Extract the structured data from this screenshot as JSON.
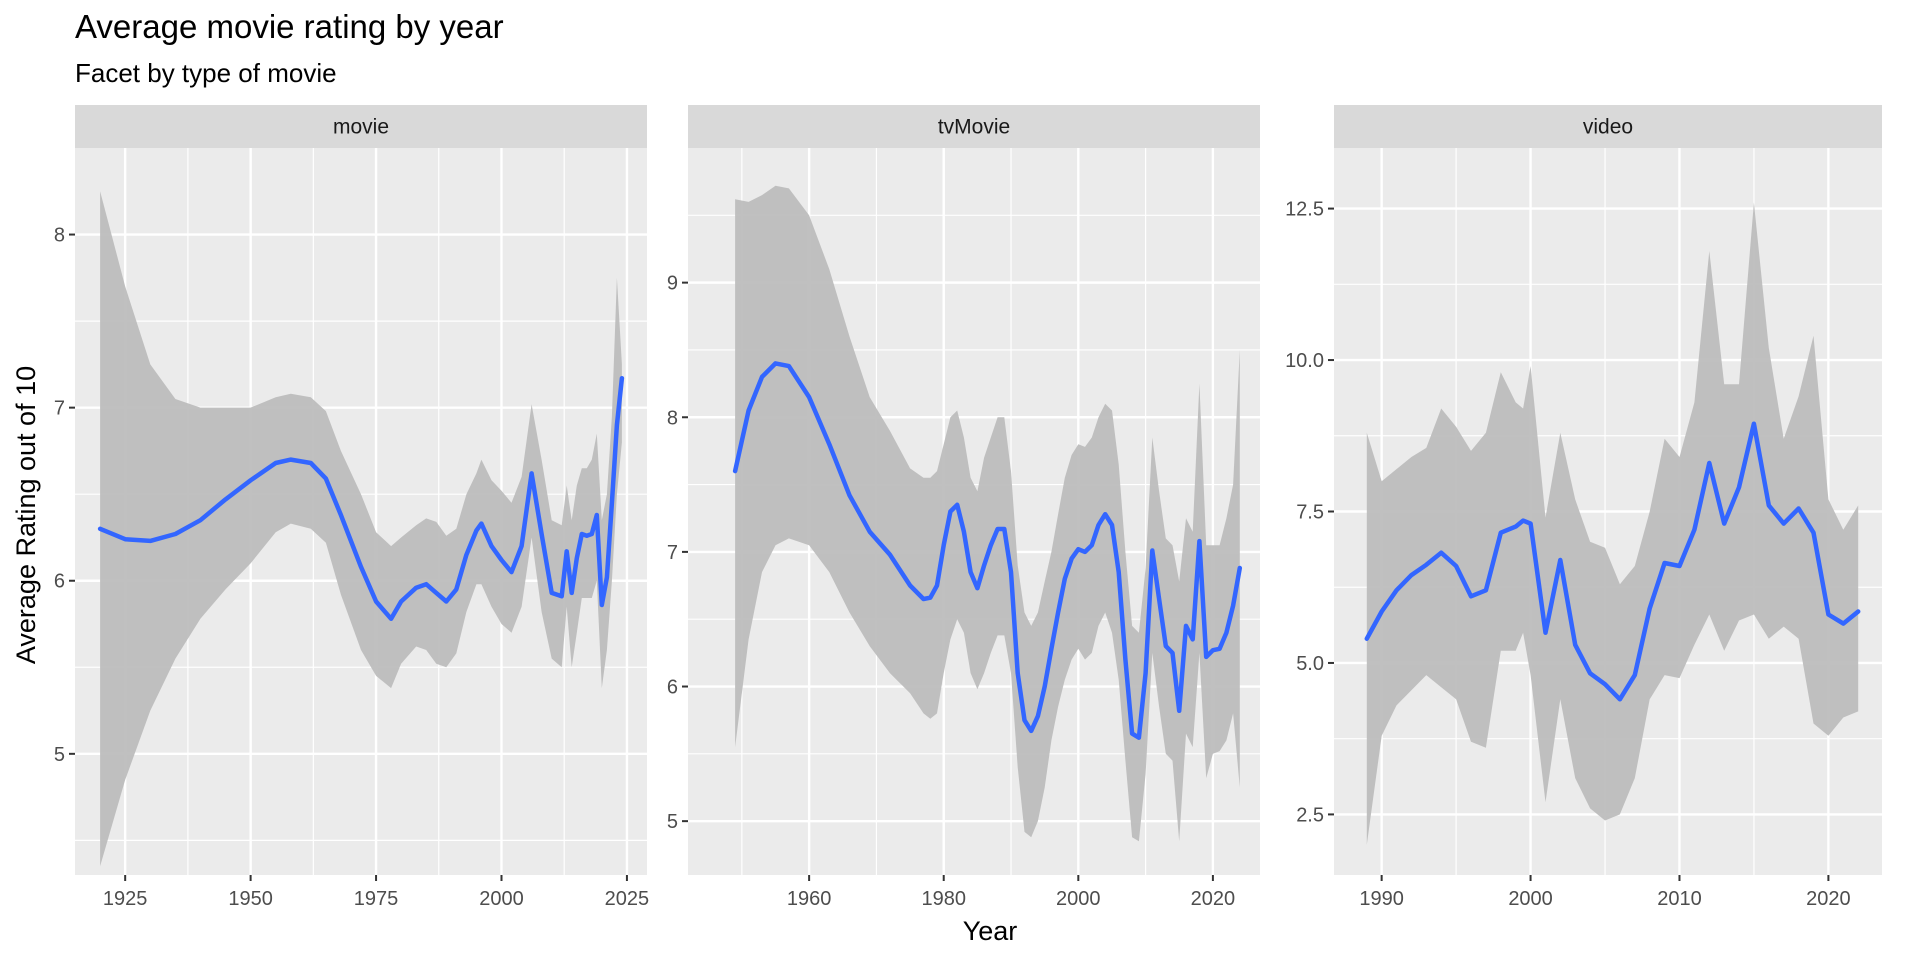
{
  "chart_data": {
    "type": "line",
    "title": "Average movie rating by year",
    "subtitle": "Facet by type of movie",
    "xlabel": "Year",
    "ylabel": "Average Rating out of 10",
    "grid": true,
    "legend": "none",
    "colors": {
      "line": "#3366ff",
      "band": "#bdbdbd",
      "panel": "#ebebeb",
      "strip": "#d9d9d9",
      "grid": "#ffffff",
      "tick": "#333333"
    },
    "facets": [
      {
        "label": "movie",
        "xlim": [
          1915,
          2029
        ],
        "ylim": [
          4.3,
          8.5
        ],
        "xticks": [
          1925,
          1950,
          1975,
          2000,
          2025
        ],
        "yticks": [
          5,
          6,
          7,
          8
        ],
        "x": [
          1920,
          1925,
          1930,
          1935,
          1940,
          1945,
          1950,
          1955,
          1958,
          1962,
          1965,
          1968,
          1972,
          1975,
          1978,
          1980,
          1983,
          1985,
          1987,
          1989,
          1991,
          1993,
          1995,
          1996,
          1998,
          2000,
          2002,
          2004,
          2006,
          2008,
          2010,
          2012,
          2013,
          2014,
          2015,
          2016,
          2017,
          2018,
          2019,
          2020,
          2021,
          2022,
          2023,
          2024
        ],
        "y": [
          6.3,
          6.24,
          6.23,
          6.27,
          6.35,
          6.47,
          6.58,
          6.68,
          6.7,
          6.68,
          6.59,
          6.38,
          6.08,
          5.88,
          5.78,
          5.88,
          5.96,
          5.98,
          5.93,
          5.88,
          5.95,
          6.15,
          6.29,
          6.33,
          6.2,
          6.12,
          6.05,
          6.2,
          6.62,
          6.27,
          5.93,
          5.91,
          6.17,
          5.93,
          6.13,
          6.27,
          6.26,
          6.27,
          6.38,
          5.86,
          6.02,
          6.45,
          6.9,
          7.17
        ],
        "lower": [
          4.35,
          4.85,
          5.25,
          5.55,
          5.78,
          5.95,
          6.1,
          6.28,
          6.33,
          6.3,
          6.22,
          5.92,
          5.6,
          5.45,
          5.38,
          5.52,
          5.62,
          5.6,
          5.52,
          5.5,
          5.58,
          5.82,
          5.98,
          5.98,
          5.85,
          5.75,
          5.7,
          5.85,
          6.25,
          5.82,
          5.55,
          5.5,
          5.85,
          5.5,
          5.7,
          5.9,
          5.9,
          5.9,
          6.0,
          5.38,
          5.6,
          6.0,
          6.5,
          6.8
        ],
        "upper": [
          8.25,
          7.7,
          7.25,
          7.05,
          7.0,
          7.0,
          7.0,
          7.06,
          7.08,
          7.06,
          6.98,
          6.75,
          6.5,
          6.28,
          6.2,
          6.25,
          6.32,
          6.36,
          6.34,
          6.26,
          6.3,
          6.5,
          6.62,
          6.7,
          6.58,
          6.52,
          6.45,
          6.6,
          7.02,
          6.7,
          6.35,
          6.32,
          6.55,
          6.35,
          6.55,
          6.65,
          6.65,
          6.7,
          6.85,
          6.35,
          6.5,
          6.95,
          7.75,
          7.25
        ]
      },
      {
        "label": "tvMovie",
        "xlim": [
          1942,
          2027
        ],
        "ylim": [
          4.6,
          10.0
        ],
        "xticks": [
          1960,
          1980,
          2000,
          2020
        ],
        "yticks": [
          5,
          6,
          7,
          8,
          9
        ],
        "x": [
          1949,
          1951,
          1953,
          1955,
          1957,
          1960,
          1963,
          1966,
          1969,
          1972,
          1975,
          1977,
          1978,
          1979,
          1980,
          1981,
          1982,
          1983,
          1984,
          1985,
          1986,
          1987,
          1988,
          1989,
          1990,
          1991,
          1992,
          1993,
          1994,
          1995,
          1996,
          1997,
          1998,
          1999,
          2000,
          2001,
          2002,
          2003,
          2004,
          2005,
          2006,
          2007,
          2008,
          2009,
          2010,
          2011,
          2012,
          2013,
          2014,
          2015,
          2016,
          2017,
          2018,
          2019,
          2020,
          2021,
          2022,
          2023,
          2024
        ],
        "y": [
          7.6,
          8.05,
          8.3,
          8.4,
          8.38,
          8.15,
          7.8,
          7.42,
          7.15,
          6.98,
          6.75,
          6.65,
          6.66,
          6.75,
          7.05,
          7.3,
          7.35,
          7.15,
          6.85,
          6.73,
          6.9,
          7.05,
          7.17,
          7.17,
          6.85,
          6.1,
          5.75,
          5.67,
          5.78,
          6.0,
          6.28,
          6.55,
          6.8,
          6.95,
          7.02,
          7.0,
          7.05,
          7.2,
          7.28,
          7.2,
          6.85,
          6.2,
          5.65,
          5.62,
          6.1,
          7.01,
          6.65,
          6.3,
          6.25,
          5.82,
          6.45,
          6.35,
          7.08,
          6.22,
          6.27,
          6.28,
          6.4,
          6.6,
          6.88
        ],
        "lower": [
          5.55,
          6.35,
          6.85,
          7.05,
          7.1,
          7.05,
          6.85,
          6.55,
          6.3,
          6.1,
          5.95,
          5.8,
          5.76,
          5.8,
          6.1,
          6.35,
          6.5,
          6.4,
          6.1,
          5.98,
          6.1,
          6.25,
          6.38,
          6.38,
          6.1,
          5.4,
          4.92,
          4.88,
          5.0,
          5.25,
          5.6,
          5.85,
          6.05,
          6.2,
          6.28,
          6.2,
          6.25,
          6.45,
          6.55,
          6.4,
          6.05,
          5.45,
          4.88,
          4.85,
          5.35,
          6.25,
          5.85,
          5.5,
          5.45,
          4.85,
          5.65,
          5.55,
          6.25,
          5.32,
          5.5,
          5.52,
          5.6,
          5.8,
          5.25
        ],
        "upper": [
          9.62,
          9.6,
          9.65,
          9.72,
          9.7,
          9.5,
          9.1,
          8.6,
          8.15,
          7.9,
          7.62,
          7.55,
          7.55,
          7.6,
          7.8,
          8.0,
          8.05,
          7.85,
          7.55,
          7.45,
          7.7,
          7.85,
          8.0,
          8.0,
          7.6,
          6.9,
          6.55,
          6.45,
          6.55,
          6.78,
          7.0,
          7.28,
          7.55,
          7.72,
          7.8,
          7.78,
          7.85,
          8.0,
          8.1,
          8.05,
          7.65,
          7.0,
          6.45,
          6.4,
          6.88,
          7.85,
          7.45,
          7.1,
          7.05,
          6.78,
          7.25,
          7.15,
          8.25,
          7.05,
          7.05,
          7.05,
          7.25,
          7.5,
          8.5
        ]
      },
      {
        "label": "video",
        "xlim": [
          1986.8,
          2023.6
        ],
        "ylim": [
          1.5,
          13.5
        ],
        "xticks": [
          1990,
          2000,
          2010,
          2020
        ],
        "yticks": [
          2.5,
          5.0,
          7.5,
          10.0,
          12.5
        ],
        "x": [
          1989,
          1990,
          1991,
          1992,
          1993,
          1994,
          1995,
          1996,
          1997,
          1998,
          1999,
          1999.5,
          2000,
          2001,
          2002,
          2003,
          2004,
          2005,
          2006,
          2007,
          2008,
          2009,
          2010,
          2011,
          2012,
          2013,
          2014,
          2015,
          2016,
          2017,
          2018,
          2019,
          2020,
          2021,
          2022
        ],
        "y": [
          5.4,
          5.85,
          6.2,
          6.45,
          6.62,
          6.82,
          6.6,
          6.1,
          6.2,
          7.15,
          7.25,
          7.35,
          7.3,
          5.5,
          6.7,
          5.3,
          4.83,
          4.65,
          4.4,
          4.8,
          5.9,
          6.65,
          6.6,
          7.2,
          8.3,
          7.3,
          7.9,
          8.95,
          7.6,
          7.3,
          7.55,
          7.15,
          5.8,
          5.65,
          5.85
        ],
        "lower": [
          2.0,
          3.8,
          4.3,
          4.55,
          4.8,
          4.6,
          4.4,
          3.7,
          3.6,
          5.2,
          5.2,
          5.5,
          4.8,
          2.7,
          4.4,
          3.1,
          2.6,
          2.4,
          2.5,
          3.1,
          4.4,
          4.8,
          4.75,
          5.3,
          5.8,
          5.2,
          5.7,
          5.8,
          5.4,
          5.6,
          5.4,
          4.0,
          3.8,
          4.1,
          4.2
        ],
        "upper": [
          8.8,
          8.0,
          8.2,
          8.4,
          8.55,
          9.2,
          8.9,
          8.5,
          8.8,
          9.8,
          9.3,
          9.2,
          9.9,
          7.4,
          8.8,
          7.7,
          7.0,
          6.9,
          6.3,
          6.6,
          7.5,
          8.7,
          8.4,
          9.3,
          11.8,
          9.6,
          9.6,
          12.6,
          10.2,
          8.7,
          9.4,
          10.4,
          7.7,
          7.2,
          7.6
        ]
      }
    ]
  }
}
